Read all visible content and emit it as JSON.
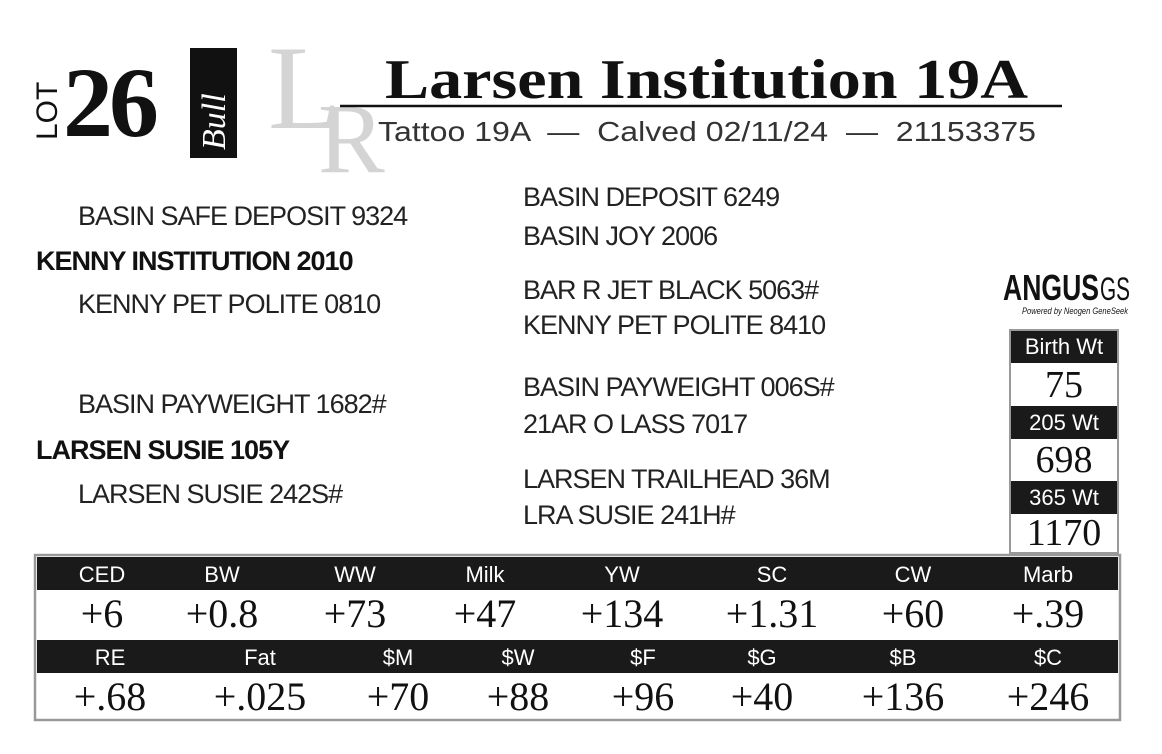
{
  "lot": {
    "label": "LOT",
    "number": "26",
    "sex": "Bull",
    "watermark": [
      "L",
      "R"
    ]
  },
  "title": "Larsen Institution 19A",
  "subtitle": "Tattoo 19A  —  Calved 02/11/24  —  21153375",
  "pedigree": {
    "sire": {
      "name": "KENNY INSTITUTION 2010",
      "sire": {
        "name": "BASIN SAFE DEPOSIT 9324",
        "sire": "BASIN DEPOSIT 6249",
        "dam": "BASIN JOY 2006"
      },
      "dam": {
        "name": "KENNY PET POLITE 0810",
        "sire": "BAR R JET BLACK 5063#",
        "dam": "KENNY PET POLITE 8410"
      }
    },
    "dam": {
      "name": "LARSEN SUSIE 105Y",
      "sire": {
        "name": "BASIN PAYWEIGHT 1682#",
        "sire": "BASIN PAYWEIGHT 006S#",
        "dam": "21AR O LASS 7017"
      },
      "dam": {
        "name": "LARSEN SUSIE 242S#",
        "sire": "LARSEN TRAILHEAD 36M",
        "dam": "LRA SUSIE 241H#"
      }
    }
  },
  "brand": {
    "name": "ANGUS",
    "suffix": "GS",
    "tagline": "Powered by Neogen GeneSeek"
  },
  "weights": [
    {
      "label": "Birth Wt",
      "value": "75"
    },
    {
      "label": "205 Wt",
      "value": "698"
    },
    {
      "label": "365 Wt",
      "value": "1170"
    }
  ],
  "epd_table": {
    "rows": [
      {
        "headers": [
          "CED",
          "BW",
          "WW",
          "Milk",
          "YW",
          "SC",
          "CW",
          "Marb"
        ],
        "values": [
          "+6",
          "+0.8",
          "+73",
          "+47",
          "+134",
          "+1.31",
          "+60",
          "+.39"
        ]
      },
      {
        "headers": [
          "RE",
          "Fat",
          "$M",
          "$W",
          "$F",
          "$G",
          "$B",
          "$C"
        ],
        "values": [
          "+.68",
          "+.025",
          "+70",
          "+88",
          "+96",
          "+40",
          "+136",
          "+246"
        ]
      }
    ]
  }
}
